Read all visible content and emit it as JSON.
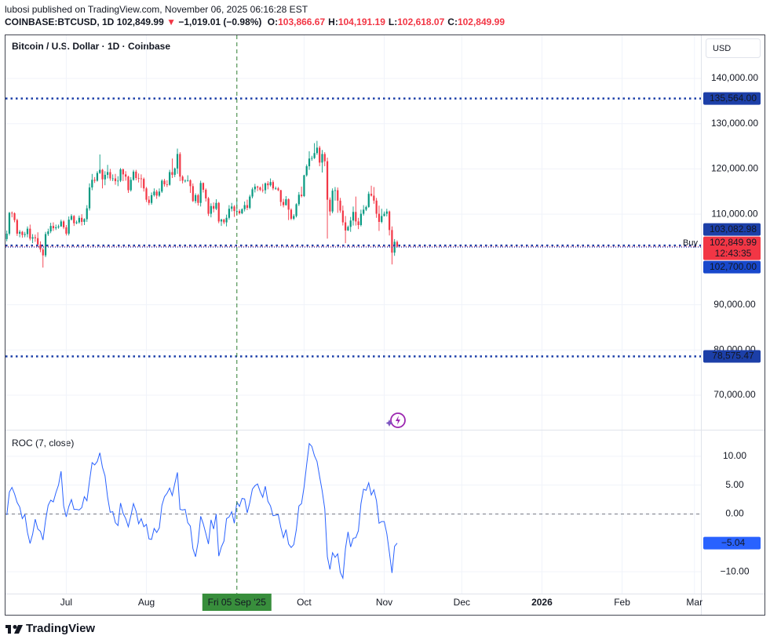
{
  "header": {
    "published": "lubosi published on TradingView.com, November 06, 2025 06:16:28 EST",
    "symbol": "COINBASE:BTCUSD, 1D",
    "last": "102,849.99",
    "arrow": "▼",
    "change": "−1,019.01 (−0.98%)",
    "ohlc": [
      {
        "key": "O:",
        "value": "103,866.67"
      },
      {
        "key": "H:",
        "value": "104,191.19"
      },
      {
        "key": "L:",
        "value": "102,618.07"
      },
      {
        "key": "C:",
        "value": "102,849.99"
      }
    ]
  },
  "footer": {
    "logo": "TradingView"
  },
  "chart_data": [
    {
      "type": "candlestick",
      "title": "Bitcoin / U.S. Dollar · 1D · Coinbase",
      "currency": "USD",
      "xlim": [
        -0.5,
        268.5
      ],
      "xticks": [
        {
          "value": 23,
          "label": "Jul"
        },
        {
          "value": 54,
          "label": "Aug"
        },
        {
          "value": 115,
          "label": "Oct"
        },
        {
          "value": 146,
          "label": "Nov"
        },
        {
          "value": 176,
          "label": "Dec"
        },
        {
          "value": 207,
          "label": "2026"
        },
        {
          "value": 238,
          "label": "Feb"
        },
        {
          "value": 266,
          "label": "Mar"
        }
      ],
      "ylim": [
        62380,
        149530
      ],
      "yticks": [
        {
          "value": 140000,
          "label": "140,000.00"
        },
        {
          "value": 130000,
          "label": "130,000.00"
        },
        {
          "value": 120000,
          "label": "120,000.00"
        },
        {
          "value": 110000,
          "label": "110,000.00"
        },
        {
          "value": 90000,
          "label": "90,000.00"
        },
        {
          "value": 80000,
          "label": "80,000.00"
        },
        {
          "value": 70000,
          "label": "70,000.00"
        }
      ],
      "grid": true,
      "up_color": "#089981",
      "down_color": "#f23645",
      "candles": [
        [
          104500,
          106400,
          104000,
          105700
        ],
        [
          105700,
          110500,
          105300,
          110300
        ],
        [
          110300,
          110600,
          109300,
          110200
        ],
        [
          110200,
          110400,
          108200,
          108700
        ],
        [
          108700,
          109000,
          105200,
          105700
        ],
        [
          105700,
          106500,
          104900,
          106100
        ],
        [
          106100,
          106300,
          104800,
          105400
        ],
        [
          105400,
          106100,
          104900,
          105600
        ],
        [
          105600,
          107300,
          104900,
          106800
        ],
        [
          106800,
          107700,
          104200,
          104600
        ],
        [
          104600,
          105600,
          103600,
          104900
        ],
        [
          104900,
          105500,
          103900,
          104700
        ],
        [
          104700,
          106000,
          102700,
          103300
        ],
        [
          103300,
          104000,
          101600,
          102200
        ],
        [
          102200,
          102600,
          98200,
          100900
        ],
        [
          100900,
          106100,
          100500,
          105600
        ],
        [
          105600,
          106800,
          105200,
          106200
        ],
        [
          106200,
          108100,
          105800,
          107400
        ],
        [
          107400,
          108200,
          106300,
          106900
        ],
        [
          106900,
          107700,
          106500,
          107100
        ],
        [
          107100,
          107700,
          106800,
          107300
        ],
        [
          107300,
          108800,
          107200,
          108400
        ],
        [
          108400,
          108700,
          106700,
          107100
        ],
        [
          107100,
          107600,
          105300,
          105700
        ],
        [
          105700,
          109500,
          105300,
          108800
        ],
        [
          108800,
          110000,
          108600,
          109600
        ],
        [
          109600,
          109800,
          107400,
          108000
        ],
        [
          108000,
          108600,
          107800,
          108200
        ],
        [
          108200,
          109700,
          107900,
          109200
        ],
        [
          109200,
          110000,
          107500,
          108300
        ],
        [
          108300,
          109100,
          107600,
          108900
        ],
        [
          108900,
          112000,
          108300,
          111300
        ],
        [
          111300,
          116800,
          110800,
          115900
        ],
        [
          115900,
          118900,
          115300,
          117600
        ],
        [
          117600,
          118200,
          116900,
          117400
        ],
        [
          117400,
          119500,
          117200,
          119100
        ],
        [
          119100,
          123200,
          118900,
          119800
        ],
        [
          119800,
          120000,
          115700,
          117700
        ],
        [
          117700,
          119500,
          116400,
          118700
        ],
        [
          118700,
          120900,
          117900,
          119300
        ],
        [
          119300,
          120000,
          117400,
          117900
        ],
        [
          117900,
          118800,
          117300,
          117900
        ],
        [
          117900,
          118900,
          116500,
          117300
        ],
        [
          117300,
          118400,
          116200,
          117400
        ],
        [
          117400,
          120200,
          117100,
          119900
        ],
        [
          119900,
          120100,
          117300,
          118800
        ],
        [
          118800,
          119500,
          117400,
          118300
        ],
        [
          118300,
          118500,
          114700,
          115300
        ],
        [
          115300,
          118200,
          115000,
          117600
        ],
        [
          117600,
          119800,
          117400,
          119400
        ],
        [
          119400,
          119800,
          117500,
          118000
        ],
        [
          118000,
          119000,
          117000,
          117900
        ],
        [
          117900,
          118800,
          115800,
          117800
        ],
        [
          117800,
          118100,
          115000,
          115700
        ],
        [
          115700,
          116000,
          112700,
          113200
        ],
        [
          113200,
          114000,
          112000,
          112500
        ],
        [
          112500,
          114800,
          112100,
          114200
        ],
        [
          114200,
          115700,
          113900,
          115000
        ],
        [
          115000,
          115400,
          113400,
          114100
        ],
        [
          114100,
          115700,
          113800,
          115000
        ],
        [
          115000,
          117700,
          114700,
          117400
        ],
        [
          117400,
          117800,
          116100,
          116600
        ],
        [
          116600,
          117500,
          116000,
          116500
        ],
        [
          116500,
          119800,
          116300,
          119300
        ],
        [
          119300,
          122300,
          118000,
          118700
        ],
        [
          118700,
          120300,
          118200,
          120100
        ],
        [
          120100,
          124500,
          118900,
          123300
        ],
        [
          123300,
          123700,
          117300,
          118300
        ],
        [
          118300,
          118600,
          116800,
          117400
        ],
        [
          117400,
          117700,
          117000,
          117400
        ],
        [
          117400,
          118600,
          117200,
          117500
        ],
        [
          117500,
          117700,
          114700,
          116200
        ],
        [
          116200,
          116800,
          112700,
          112900
        ],
        [
          112900,
          114600,
          112400,
          114200
        ],
        [
          114200,
          114500,
          111900,
          112500
        ],
        [
          112500,
          117400,
          111700,
          116900
        ],
        [
          116900,
          117000,
          114800,
          115400
        ],
        [
          115400,
          115700,
          112800,
          113500
        ],
        [
          113500,
          113800,
          109600,
          110100
        ],
        [
          110100,
          112400,
          109300,
          111800
        ],
        [
          111800,
          112600,
          110400,
          111200
        ],
        [
          111200,
          113300,
          110900,
          112500
        ],
        [
          112500,
          112700,
          108000,
          108400
        ],
        [
          108400,
          109000,
          107400,
          108800
        ],
        [
          108800,
          109000,
          107800,
          108200
        ],
        [
          108200,
          109900,
          107300,
          109200
        ],
        [
          109200,
          112000,
          108800,
          111200
        ],
        [
          111200,
          112500,
          110600,
          111700
        ],
        [
          111700,
          112000,
          109400,
          110700
        ],
        [
          110700,
          113300,
          109900,
          110700
        ],
        [
          110700,
          111100,
          109900,
          110200
        ],
        [
          110200,
          111300,
          110000,
          111100
        ],
        [
          111100,
          112800,
          110600,
          112000
        ],
        [
          112000,
          113200,
          110900,
          111400
        ],
        [
          111400,
          114300,
          111100,
          113900
        ],
        [
          113900,
          115900,
          113500,
          115500
        ],
        [
          115500,
          116700,
          114800,
          116100
        ],
        [
          116100,
          116300,
          115100,
          115900
        ],
        [
          115900,
          116100,
          115100,
          115400
        ],
        [
          115400,
          116700,
          114800,
          115300
        ],
        [
          115300,
          117000,
          114500,
          116800
        ],
        [
          116800,
          117300,
          115500,
          116400
        ],
        [
          116400,
          117900,
          116100,
          117100
        ],
        [
          117100,
          117500,
          115300,
          115700
        ],
        [
          115700,
          116100,
          115400,
          115700
        ],
        [
          115700,
          116000,
          115100,
          115300
        ],
        [
          115300,
          115400,
          111800,
          112700
        ],
        [
          112700,
          113400,
          111500,
          112000
        ],
        [
          112000,
          114000,
          111900,
          113300
        ],
        [
          113300,
          113500,
          108700,
          111000
        ],
        [
          111000,
          111300,
          108700,
          109000
        ],
        [
          109000,
          110000,
          108700,
          109600
        ],
        [
          109600,
          112400,
          109300,
          112200
        ],
        [
          112200,
          114900,
          111800,
          114300
        ],
        [
          114300,
          116100,
          113700,
          114000
        ],
        [
          114000,
          118700,
          113800,
          118600
        ],
        [
          118600,
          121000,
          118300,
          120600
        ],
        [
          120600,
          123900,
          119800,
          122300
        ],
        [
          122300,
          122900,
          121800,
          122400
        ],
        [
          122400,
          125700,
          122200,
          123500
        ],
        [
          123500,
          126200,
          123100,
          124700
        ],
        [
          124700,
          125100,
          120600,
          121400
        ],
        [
          121400,
          124200,
          119200,
          123300
        ],
        [
          123300,
          123700,
          120600,
          121700
        ],
        [
          121700,
          122500,
          104600,
          113200
        ],
        [
          113200,
          113700,
          109700,
          110600
        ],
        [
          110600,
          115700,
          110200,
          115200
        ],
        [
          115200,
          116000,
          113000,
          115300
        ],
        [
          115300,
          115900,
          110300,
          113000
        ],
        [
          113000,
          113600,
          110300,
          110800
        ],
        [
          110800,
          111900,
          107500,
          108200
        ],
        [
          108200,
          109600,
          103600,
          106400
        ],
        [
          106400,
          107500,
          106300,
          107200
        ],
        [
          107200,
          109400,
          106100,
          108600
        ],
        [
          108600,
          111700,
          107500,
          110500
        ],
        [
          110500,
          113900,
          107500,
          108400
        ],
        [
          108400,
          109200,
          106700,
          107600
        ],
        [
          107600,
          111000,
          107300,
          110100
        ],
        [
          110100,
          112000,
          109700,
          111000
        ],
        [
          111000,
          111900,
          110700,
          111600
        ],
        [
          111600,
          115000,
          111400,
          114500
        ],
        [
          114500,
          116300,
          113900,
          114100
        ],
        [
          114100,
          116000,
          112300,
          113000
        ],
        [
          113000,
          113600,
          109200,
          110100
        ],
        [
          110100,
          111900,
          106300,
          108300
        ],
        [
          108300,
          111200,
          108000,
          109600
        ],
        [
          109600,
          110600,
          109500,
          110100
        ],
        [
          110100,
          111200,
          109500,
          110600
        ],
        [
          110600,
          110800,
          105300,
          106500
        ],
        [
          106500,
          107300,
          98900,
          101500
        ],
        [
          101500,
          104500,
          100800,
          103900
        ],
        [
          103866.67,
          104191.19,
          102618.07,
          102849.99
        ]
      ],
      "levels": [
        {
          "value": 135564,
          "label": "135,564.00",
          "color": "#1c3fa8"
        },
        {
          "value": 103082.98,
          "label": "103,082.98",
          "color": "#1c3fa8",
          "note": "Buy"
        },
        {
          "value": 78575.47,
          "label": "78,575.47",
          "color": "#1c3fa8"
        }
      ],
      "price_labels": [
        {
          "value": 102849.99,
          "label": "102,849.99",
          "sub": "12:43:35",
          "color": "#f23645"
        },
        {
          "value": 102700,
          "label": "102,700.00",
          "color": "#1848cc"
        }
      ],
      "crosshair": {
        "value": 89,
        "label": "Fri 05 Sep '25"
      }
    },
    {
      "type": "line",
      "title": "ROC (7, close)",
      "color": "#2962ff",
      "ylim": [
        -13.78,
        14.46
      ],
      "yticks": [
        {
          "value": 10,
          "label": "10.00"
        },
        {
          "value": 5,
          "label": "5.00"
        },
        {
          "value": 0,
          "label": "0.00"
        },
        {
          "value": -10,
          "label": "−10.00"
        }
      ],
      "hline": 0,
      "values": [
        -0.2,
        3.8,
        4.6,
        3.5,
        2.0,
        1.2,
        -0.8,
        -0.1,
        -3.2,
        -5.1,
        -3.5,
        -0.9,
        -2.6,
        -3.0,
        -4.5,
        -1.1,
        1.5,
        2.4,
        2.1,
        3.7,
        5.0,
        7.4,
        1.4,
        -0.5,
        1.3,
        2.5,
        0.8,
        0.8,
        0.7,
        1.1,
        3.0,
        2.3,
        5.7,
        8.9,
        8.5,
        9.1,
        10.6,
        8.1,
        6.6,
        2.9,
        0.3,
        0.4,
        -1.5,
        -2.0,
        1.9,
        0.1,
        -0.8,
        -2.2,
        -0.3,
        1.8,
        0.5,
        -1.7,
        -0.8,
        -2.2,
        -1.8,
        -4.3,
        -4.4,
        -2.5,
        -3.2,
        -2.4,
        1.5,
        3.0,
        3.6,
        4.5,
        3.2,
        5.3,
        7.2,
        0.8,
        0.7,
        0.8,
        -1.5,
        -2.1,
        -6.0,
        -7.4,
        -4.9,
        -0.4,
        -1.7,
        -3.4,
        -5.2,
        -1.0,
        -2.6,
        0.0,
        -7.3,
        -5.7,
        -4.7,
        -0.8,
        -0.5,
        0.4,
        -1.6,
        2.1,
        1.3,
        2.7,
        2.6,
        0.2,
        2.0,
        4.3,
        4.9,
        5.2,
        3.9,
        2.9,
        4.8,
        2.2,
        1.4,
        -0.3,
        -0.2,
        -0.1,
        -2.3,
        -4.1,
        -2.7,
        -5.2,
        -5.8,
        -5.3,
        -2.7,
        1.4,
        1.8,
        4.7,
        8.6,
        12.2,
        11.7,
        10.1,
        9.1,
        6.5,
        4.0,
        0.9,
        -7.4,
        -9.6,
        -6.7,
        -7.5,
        -6.9,
        -10.1,
        -11.1,
        -6.0,
        -3.1,
        -5.7,
        -4.2,
        -4.1,
        -2.9,
        1.8,
        4.3,
        4.1,
        5.4,
        3.3,
        4.2,
        2.3,
        -1.6,
        -1.3,
        -1.3,
        -3.4,
        -6.7,
        -10.2,
        -5.6,
        -5.04
      ],
      "price_labels": [
        {
          "value": -5.04,
          "label": "−5.04",
          "color": "#2962ff"
        }
      ]
    }
  ]
}
